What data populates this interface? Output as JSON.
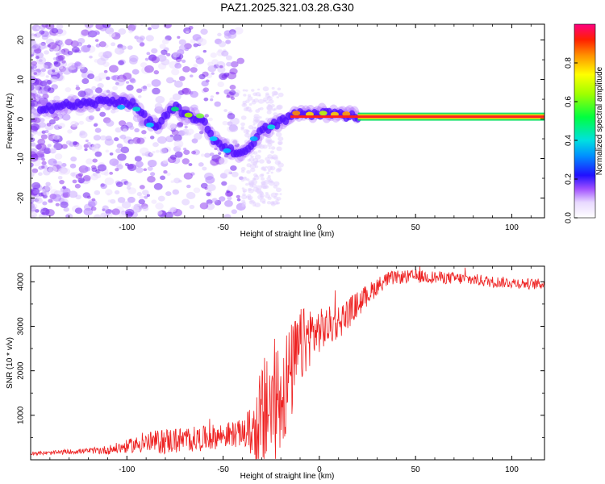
{
  "title": "PAZ1.2025.321.03.28.G30",
  "chart_data": [
    {
      "type": "heatmap",
      "name": "spectrogram",
      "xlabel": "Height of straight line (km)",
      "ylabel": "Frequency (Hz)",
      "xlim": [
        -150,
        117
      ],
      "ylim": [
        -25,
        24
      ],
      "xticks": [
        -100,
        -50,
        0,
        50,
        100
      ],
      "yticks": [
        -20,
        -10,
        0,
        10,
        20
      ],
      "ridge": {
        "description": "dominant frequency track (km, Hz)",
        "x": [
          -140,
          -130,
          -120,
          -110,
          -100,
          -95,
          -90,
          -85,
          -80,
          -75,
          -70,
          -65,
          -60,
          -55,
          -50,
          -45,
          -40,
          -35,
          -30,
          -25,
          -20,
          -15,
          -10,
          -5,
          0,
          5,
          10,
          15,
          20,
          25,
          117
        ],
        "y": [
          3,
          3.5,
          4,
          4.5,
          4.5,
          3,
          0,
          -2,
          0.5,
          3,
          1,
          0.5,
          -1,
          -5,
          -7,
          -8,
          -9,
          -6,
          -3,
          -2,
          -0.5,
          0.5,
          1.5,
          1,
          1.5,
          1.5,
          1,
          1,
          0.8,
          0.6,
          0.6
        ]
      },
      "colorbar": {
        "label": "Normalized spectral amplitude",
        "ticks": [
          "0.0",
          "0.2",
          "0.4",
          "0.6",
          "0.8"
        ],
        "range": [
          0,
          1
        ]
      }
    },
    {
      "type": "line",
      "name": "snr",
      "xlabel": "Height of straight line (km)",
      "ylabel": "SNR (10 * v/v)",
      "xlim": [
        -150,
        117
      ],
      "ylim": [
        0,
        4350
      ],
      "xticks": [
        -100,
        -50,
        0,
        50,
        100
      ],
      "yticks": [
        1000,
        2000,
        3000,
        4000
      ],
      "color": "#ee2222",
      "envelope": {
        "description": "approximate SNR level vs height (km, SNR)",
        "x": [
          -150,
          -140,
          -130,
          -120,
          -110,
          -100,
          -90,
          -80,
          -70,
          -60,
          -50,
          -40,
          -30,
          -25,
          -20,
          -15,
          -10,
          -5,
          0,
          5,
          10,
          15,
          20,
          25,
          30,
          35,
          40,
          50,
          60,
          70,
          80,
          90,
          100,
          110,
          117
        ],
        "y": [
          150,
          150,
          180,
          200,
          220,
          300,
          380,
          420,
          450,
          480,
          550,
          600,
          700,
          1200,
          1500,
          1900,
          2500,
          2800,
          2900,
          3000,
          3100,
          3300,
          3500,
          3700,
          3900,
          4050,
          4100,
          4120,
          4100,
          4080,
          4050,
          4000,
          3980,
          3950,
          3950
        ]
      },
      "noise": {
        "x": [
          -150,
          -120,
          -100,
          -80,
          -60,
          -40,
          -35,
          -30,
          -20,
          -10,
          0,
          10,
          20,
          30,
          40,
          117
        ],
        "amplitude": [
          40,
          60,
          150,
          300,
          280,
          300,
          600,
          1500,
          1400,
          900,
          500,
          400,
          300,
          200,
          150,
          120
        ]
      }
    }
  ]
}
